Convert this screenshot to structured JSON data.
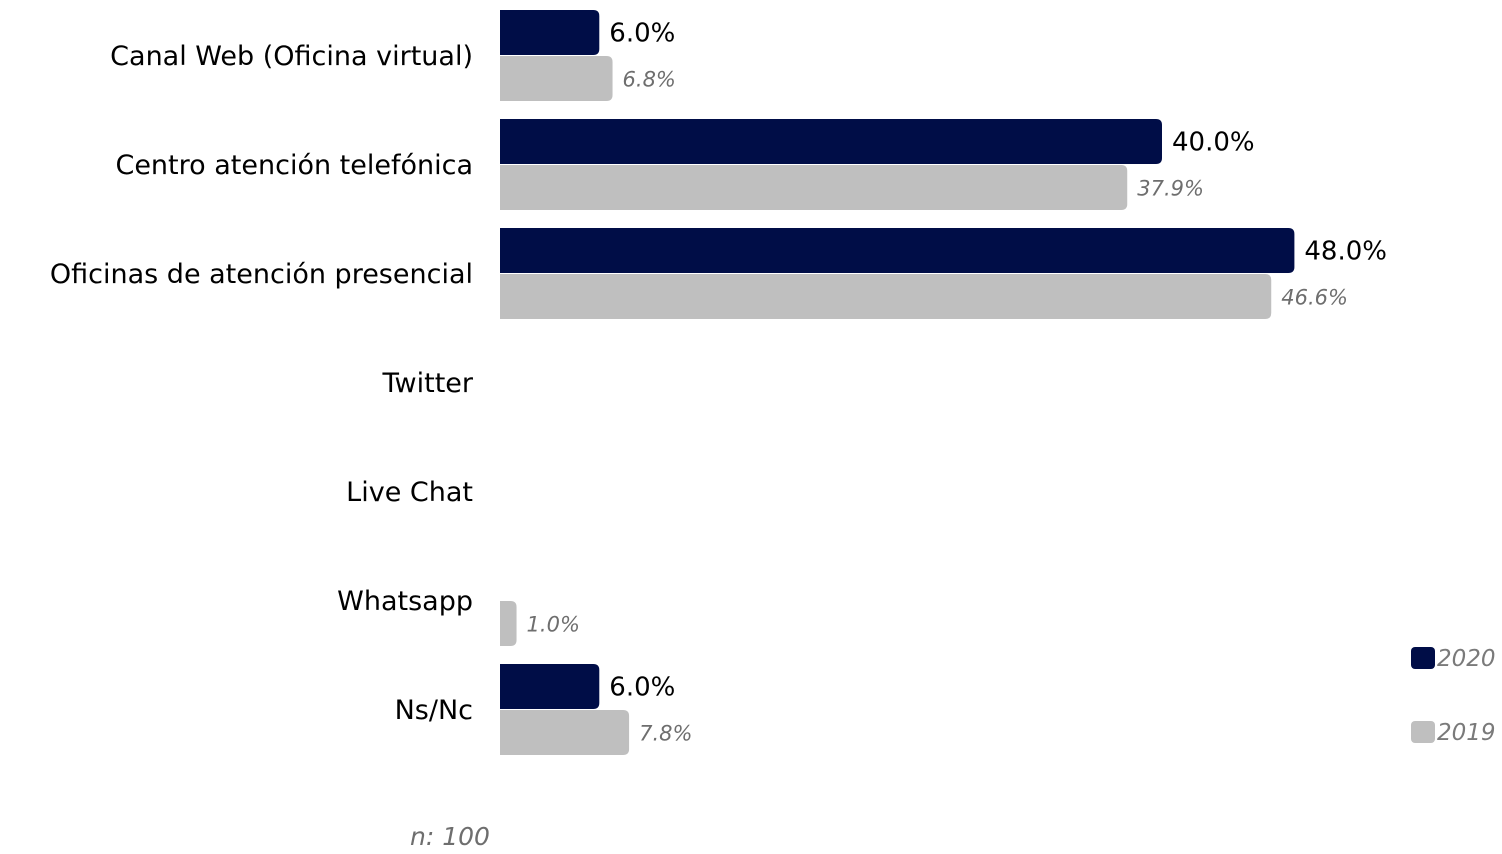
{
  "chart_data": {
    "type": "bar",
    "orientation": "horizontal",
    "categories": [
      "Canal Web (Oficina virtual)",
      "Centro atención telefónica",
      "Oficinas de atención presencial",
      "Twitter",
      "Live Chat",
      "Whatsapp",
      "Ns/Nc"
    ],
    "series": [
      {
        "name": "2020",
        "color": "#000d47",
        "values": [
          6.0,
          40.0,
          48.0,
          null,
          null,
          null,
          6.0
        ],
        "labels": [
          "6.0%",
          "40.0%",
          "48.0%",
          "",
          "",
          "",
          "6.0%"
        ]
      },
      {
        "name": "2019",
        "color": "#bfbfbf",
        "values": [
          6.8,
          37.9,
          46.6,
          null,
          null,
          1.0,
          7.8
        ],
        "labels": [
          "6.8%",
          "37.9%",
          "46.6%",
          "",
          "",
          "1.0%",
          "7.8%"
        ]
      }
    ],
    "xlim": [
      0,
      60
    ],
    "grid": false,
    "legend_position": "bottom-right",
    "unit": "%"
  },
  "note": "n: 100"
}
